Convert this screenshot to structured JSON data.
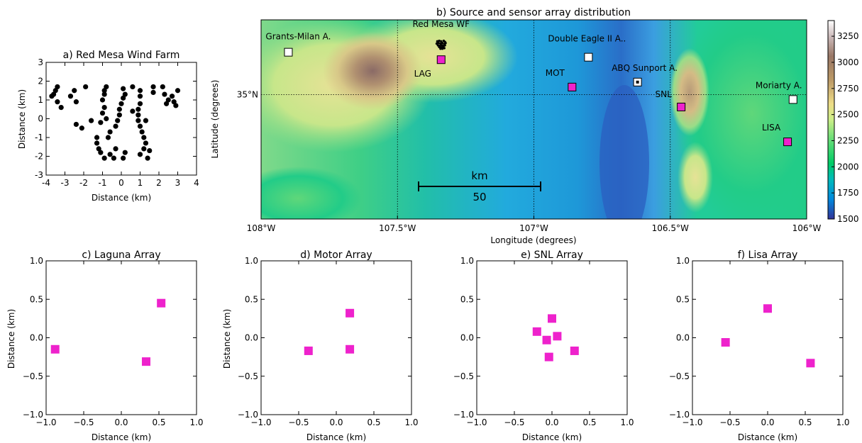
{
  "chart_data": [
    {
      "id": "a",
      "type": "scatter",
      "title": "a) Red Mesa Wind Farm",
      "xlabel": "Distance (km)",
      "ylabel": "Distance (km)",
      "xlim": [
        -4,
        4
      ],
      "ylim": [
        -3,
        3
      ],
      "xticks": [
        -4,
        -3,
        -2,
        -1,
        0,
        1,
        2,
        3,
        4
      ],
      "yticks": [
        -3,
        -2,
        -1,
        0,
        1,
        2,
        3
      ],
      "marker": "circle",
      "color": "#000000",
      "points": [
        [
          -3.4,
          1.7
        ],
        [
          -3.5,
          1.5
        ],
        [
          -3.6,
          1.3
        ],
        [
          -3.7,
          1.2
        ],
        [
          -3.4,
          0.9
        ],
        [
          -3.2,
          0.6
        ],
        [
          -2.5,
          1.5
        ],
        [
          -2.7,
          1.2
        ],
        [
          -2.4,
          0.9
        ],
        [
          -1.9,
          1.7
        ],
        [
          -2.4,
          -0.3
        ],
        [
          -2.1,
          -0.5
        ],
        [
          -1.6,
          -0.1
        ],
        [
          -0.8,
          1.7
        ],
        [
          -0.9,
          1.5
        ],
        [
          -0.9,
          1.3
        ],
        [
          -1.0,
          1.0
        ],
        [
          -0.9,
          0.6
        ],
        [
          -1.0,
          0.3
        ],
        [
          -0.8,
          0.0
        ],
        [
          -1.1,
          -0.2
        ],
        [
          -0.6,
          -0.7
        ],
        [
          -0.7,
          -1.0
        ],
        [
          -1.3,
          -1.0
        ],
        [
          -1.3,
          -1.3
        ],
        [
          -1.2,
          -1.6
        ],
        [
          -1.1,
          -1.8
        ],
        [
          -0.9,
          -2.1
        ],
        [
          -0.6,
          -1.9
        ],
        [
          -0.3,
          -1.6
        ],
        [
          -0.3,
          -0.4
        ],
        [
          -0.2,
          -0.1
        ],
        [
          -0.1,
          0.2
        ],
        [
          -0.1,
          0.5
        ],
        [
          0.0,
          0.8
        ],
        [
          0.1,
          1.1
        ],
        [
          0.2,
          1.3
        ],
        [
          0.1,
          1.6
        ],
        [
          0.6,
          1.7
        ],
        [
          0.6,
          0.4
        ],
        [
          1.0,
          1.5
        ],
        [
          1.0,
          1.2
        ],
        [
          1.0,
          0.8
        ],
        [
          0.9,
          0.5
        ],
        [
          0.9,
          0.2
        ],
        [
          0.9,
          -0.1
        ],
        [
          1.0,
          -0.4
        ],
        [
          1.1,
          -0.7
        ],
        [
          1.2,
          -1.0
        ],
        [
          1.3,
          -1.3
        ],
        [
          1.2,
          -1.6
        ],
        [
          1.0,
          -1.9
        ],
        [
          1.5,
          -1.7
        ],
        [
          1.4,
          -2.1
        ],
        [
          0.2,
          -1.8
        ],
        [
          0.1,
          -2.1
        ],
        [
          -0.4,
          -2.1
        ],
        [
          1.3,
          -0.1
        ],
        [
          1.7,
          1.7
        ],
        [
          1.7,
          1.4
        ],
        [
          2.2,
          1.7
        ],
        [
          2.3,
          1.3
        ],
        [
          2.5,
          1.0
        ],
        [
          2.4,
          0.8
        ],
        [
          2.7,
          1.2
        ],
        [
          2.8,
          0.9
        ],
        [
          2.9,
          0.7
        ],
        [
          3.0,
          1.5
        ]
      ]
    },
    {
      "id": "b",
      "type": "heatmap",
      "title": "b) Source and sensor array distribution",
      "xlabel": "Longitude (degrees)",
      "ylabel": "Latitude (degrees)",
      "xlim": [
        -108.0,
        -106.0
      ],
      "ylim": [
        34.5,
        35.3
      ],
      "xticklabels": [
        "108°W",
        "107.5°W",
        "107°W",
        "106.5°W",
        "106°W"
      ],
      "xtickvalues": [
        -108.0,
        -107.5,
        -107.0,
        -106.5,
        -106.0
      ],
      "yticklabels": [
        "35°N"
      ],
      "ytickvalues": [
        35.0
      ],
      "grid": true,
      "colorbar": {
        "min": 1500,
        "max": 3400,
        "ticks": [
          1500,
          1750,
          2000,
          2250,
          2500,
          2750,
          3000,
          3250
        ],
        "colormap": "terrain"
      },
      "scale_bar": {
        "label_top": "km",
        "label_bottom": "50"
      },
      "sites": [
        {
          "name": "Red Mesa WF",
          "lon": -107.34,
          "lat": 35.2,
          "kind": "wind_farm",
          "color": "#000000"
        },
        {
          "name": "Grants-Milan A.",
          "lon": -107.9,
          "lat": 35.17,
          "kind": "airport",
          "color": "#ffffff"
        },
        {
          "name": "Double Eagle II A..",
          "lon": -106.8,
          "lat": 35.15,
          "kind": "airport",
          "color": "#ffffff"
        },
        {
          "name": "ABQ Sunport A.",
          "lon": -106.62,
          "lat": 35.05,
          "kind": "airport",
          "color": "#ffffff"
        },
        {
          "name": "Moriarty A.",
          "lon": -106.05,
          "lat": 34.98,
          "kind": "airport",
          "color": "#ffffff"
        },
        {
          "name": "LAG",
          "lon": -107.34,
          "lat": 35.14,
          "kind": "array",
          "color": "#ee22cc"
        },
        {
          "name": "MOT",
          "lon": -106.86,
          "lat": 35.03,
          "kind": "array",
          "color": "#ee22cc"
        },
        {
          "name": "SNL",
          "lon": -106.46,
          "lat": 34.95,
          "kind": "array",
          "color": "#ee22cc"
        },
        {
          "name": "LISA",
          "lon": -106.07,
          "lat": 34.81,
          "kind": "array",
          "color": "#ee22cc"
        }
      ]
    },
    {
      "id": "c",
      "type": "scatter",
      "title": "c) Laguna Array",
      "xlabel": "Distance (km)",
      "ylabel": "Distance (km)",
      "xlim": [
        -1.0,
        1.0
      ],
      "ylim": [
        -1.0,
        1.0
      ],
      "xticks": [
        "−1.0",
        "−0.5",
        "0.0",
        "0.5",
        "1.0"
      ],
      "yticks": [
        "−1.0",
        "−0.5",
        "0.0",
        "0.5",
        "1.0"
      ],
      "marker": "square",
      "color": "#ee22cc",
      "points": [
        [
          -0.88,
          -0.15
        ],
        [
          0.33,
          -0.31
        ],
        [
          0.53,
          0.45
        ]
      ]
    },
    {
      "id": "d",
      "type": "scatter",
      "title": "d) Motor Array",
      "xlabel": "Distance (km)",
      "ylabel": "Distance (km)",
      "xlim": [
        -1.0,
        1.0
      ],
      "ylim": [
        -1.0,
        1.0
      ],
      "xticks": [
        "−1.0",
        "−0.5",
        "0.0",
        "0.5",
        "1.0"
      ],
      "yticks": [
        "−1.0",
        "−0.5",
        "0.0",
        "0.5",
        "1.0"
      ],
      "marker": "square",
      "color": "#ee22cc",
      "points": [
        [
          -0.37,
          -0.17
        ],
        [
          0.18,
          -0.15
        ],
        [
          0.18,
          0.32
        ]
      ]
    },
    {
      "id": "e",
      "type": "scatter",
      "title": "e) SNL Array",
      "xlabel": "Distance (km)",
      "ylabel": "",
      "xlim": [
        -1.0,
        1.0
      ],
      "ylim": [
        -1.0,
        1.0
      ],
      "xticks": [
        "−1.0",
        "−0.5",
        "0.0",
        "0.5",
        "1.0"
      ],
      "yticks": [
        "−1.0",
        "−0.5",
        "0.0",
        "0.5",
        "1.0"
      ],
      "marker": "square",
      "color": "#ee22cc",
      "points": [
        [
          -0.2,
          0.08
        ],
        [
          -0.07,
          -0.03
        ],
        [
          0.0,
          0.25
        ],
        [
          0.07,
          0.02
        ],
        [
          -0.04,
          -0.25
        ],
        [
          0.3,
          -0.17
        ]
      ]
    },
    {
      "id": "f",
      "type": "scatter",
      "title": "f) Lisa Array",
      "xlabel": "Distance (km)",
      "ylabel": "",
      "xlim": [
        -1.0,
        1.0
      ],
      "ylim": [
        -1.0,
        1.0
      ],
      "xticks": [
        "−1.0",
        "−0.5",
        "0.0",
        "0.5",
        "1.0"
      ],
      "yticks": [
        "−1.0",
        "−0.5",
        "0.0",
        "0.5",
        "1.0"
      ],
      "marker": "square",
      "color": "#ee22cc",
      "points": [
        [
          -0.56,
          -0.06
        ],
        [
          0.0,
          0.38
        ],
        [
          0.57,
          -0.33
        ]
      ]
    }
  ]
}
